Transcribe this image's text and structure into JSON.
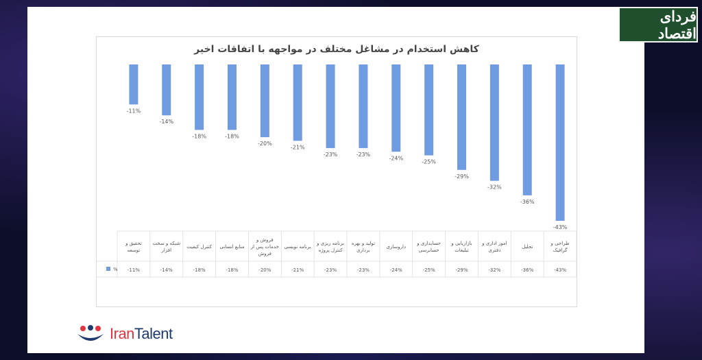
{
  "badge": {
    "text": "فردای اقتصاد"
  },
  "brand": {
    "name_part1": "Iran",
    "name_part2": "Talent"
  },
  "chart_data": {
    "type": "bar",
    "title": "کاهش استخدام در مشاغل مختلف در مواجهه با اتفاقات اخیر",
    "unit": "%",
    "categories": [
      [
        "طراحی و",
        "گرافیک"
      ],
      [
        "تحلیل"
      ],
      [
        "امور اداری و",
        "دفتری"
      ],
      [
        "بازاریابی و",
        "تبلیغات"
      ],
      [
        "حسابداری و",
        "حسابرسی"
      ],
      [
        "داروسازی"
      ],
      [
        "تولید و بهره",
        "برداری"
      ],
      [
        "برنامه ریزی و",
        "کنترل پروژه"
      ],
      [
        "برنامه نویسی"
      ],
      [
        "فروش و",
        "خدمات پس از",
        "فروش"
      ],
      [
        "منابع انسانی"
      ],
      [
        "کنترل کیفیت"
      ],
      [
        "شبکه و سخت",
        "افزار"
      ],
      [
        "تحقیق و",
        "توسعه"
      ]
    ],
    "values": [
      -43,
      -36,
      -32,
      -29,
      -25,
      -24,
      -23,
      -23,
      -21,
      -20,
      -18,
      -18,
      -14,
      -11
    ],
    "value_labels": [
      "-43%",
      "-36%",
      "-32%",
      "-29%",
      "-25%",
      "-24%",
      "-23%",
      "-23%",
      "-21%",
      "-20%",
      "-18%",
      "-18%",
      "-14%",
      "-11%"
    ],
    "ylim": [
      -43,
      0
    ],
    "color": "#6f9be0",
    "category_order": "right-to-left",
    "data_table": true
  }
}
